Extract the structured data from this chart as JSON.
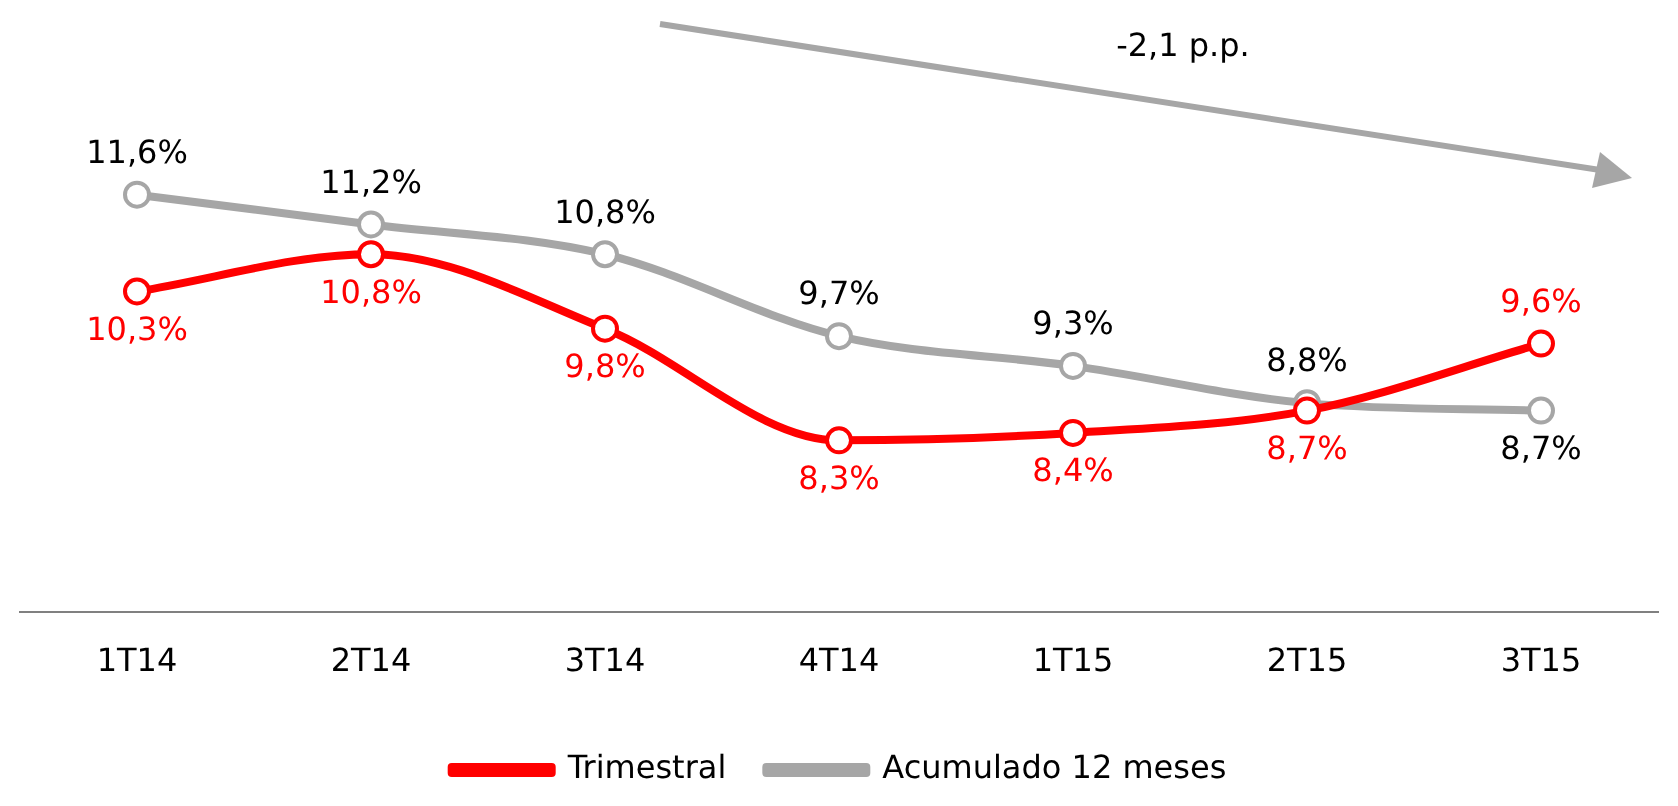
{
  "chart_data": {
    "type": "line",
    "categories": [
      "1T14",
      "2T14",
      "3T14",
      "4T14",
      "1T15",
      "2T15",
      "3T15"
    ],
    "series": [
      {
        "name": "Trimestral",
        "color": "#ff0000",
        "values": [
          10.3,
          10.8,
          9.8,
          8.3,
          8.4,
          8.7,
          9.6
        ],
        "value_labels": [
          "10,3%",
          "10,8%",
          "9,8%",
          "8,3%",
          "8,4%",
          "8,7%",
          "9,6%"
        ]
      },
      {
        "name": "Acumulado 12 meses",
        "color": "#a6a6a6",
        "values": [
          11.6,
          11.2,
          10.8,
          9.7,
          9.3,
          8.8,
          8.7
        ],
        "value_labels": [
          "11,6%",
          "11,2%",
          "10,8%",
          "9,7%",
          "9,3%",
          "8,8%",
          "8,7%"
        ]
      }
    ],
    "annotations": [
      "-2,1 p.p."
    ],
    "tick_labels": "x",
    "grid": false,
    "legend": "bottom",
    "marker": "circle",
    "line_style": "solid"
  }
}
